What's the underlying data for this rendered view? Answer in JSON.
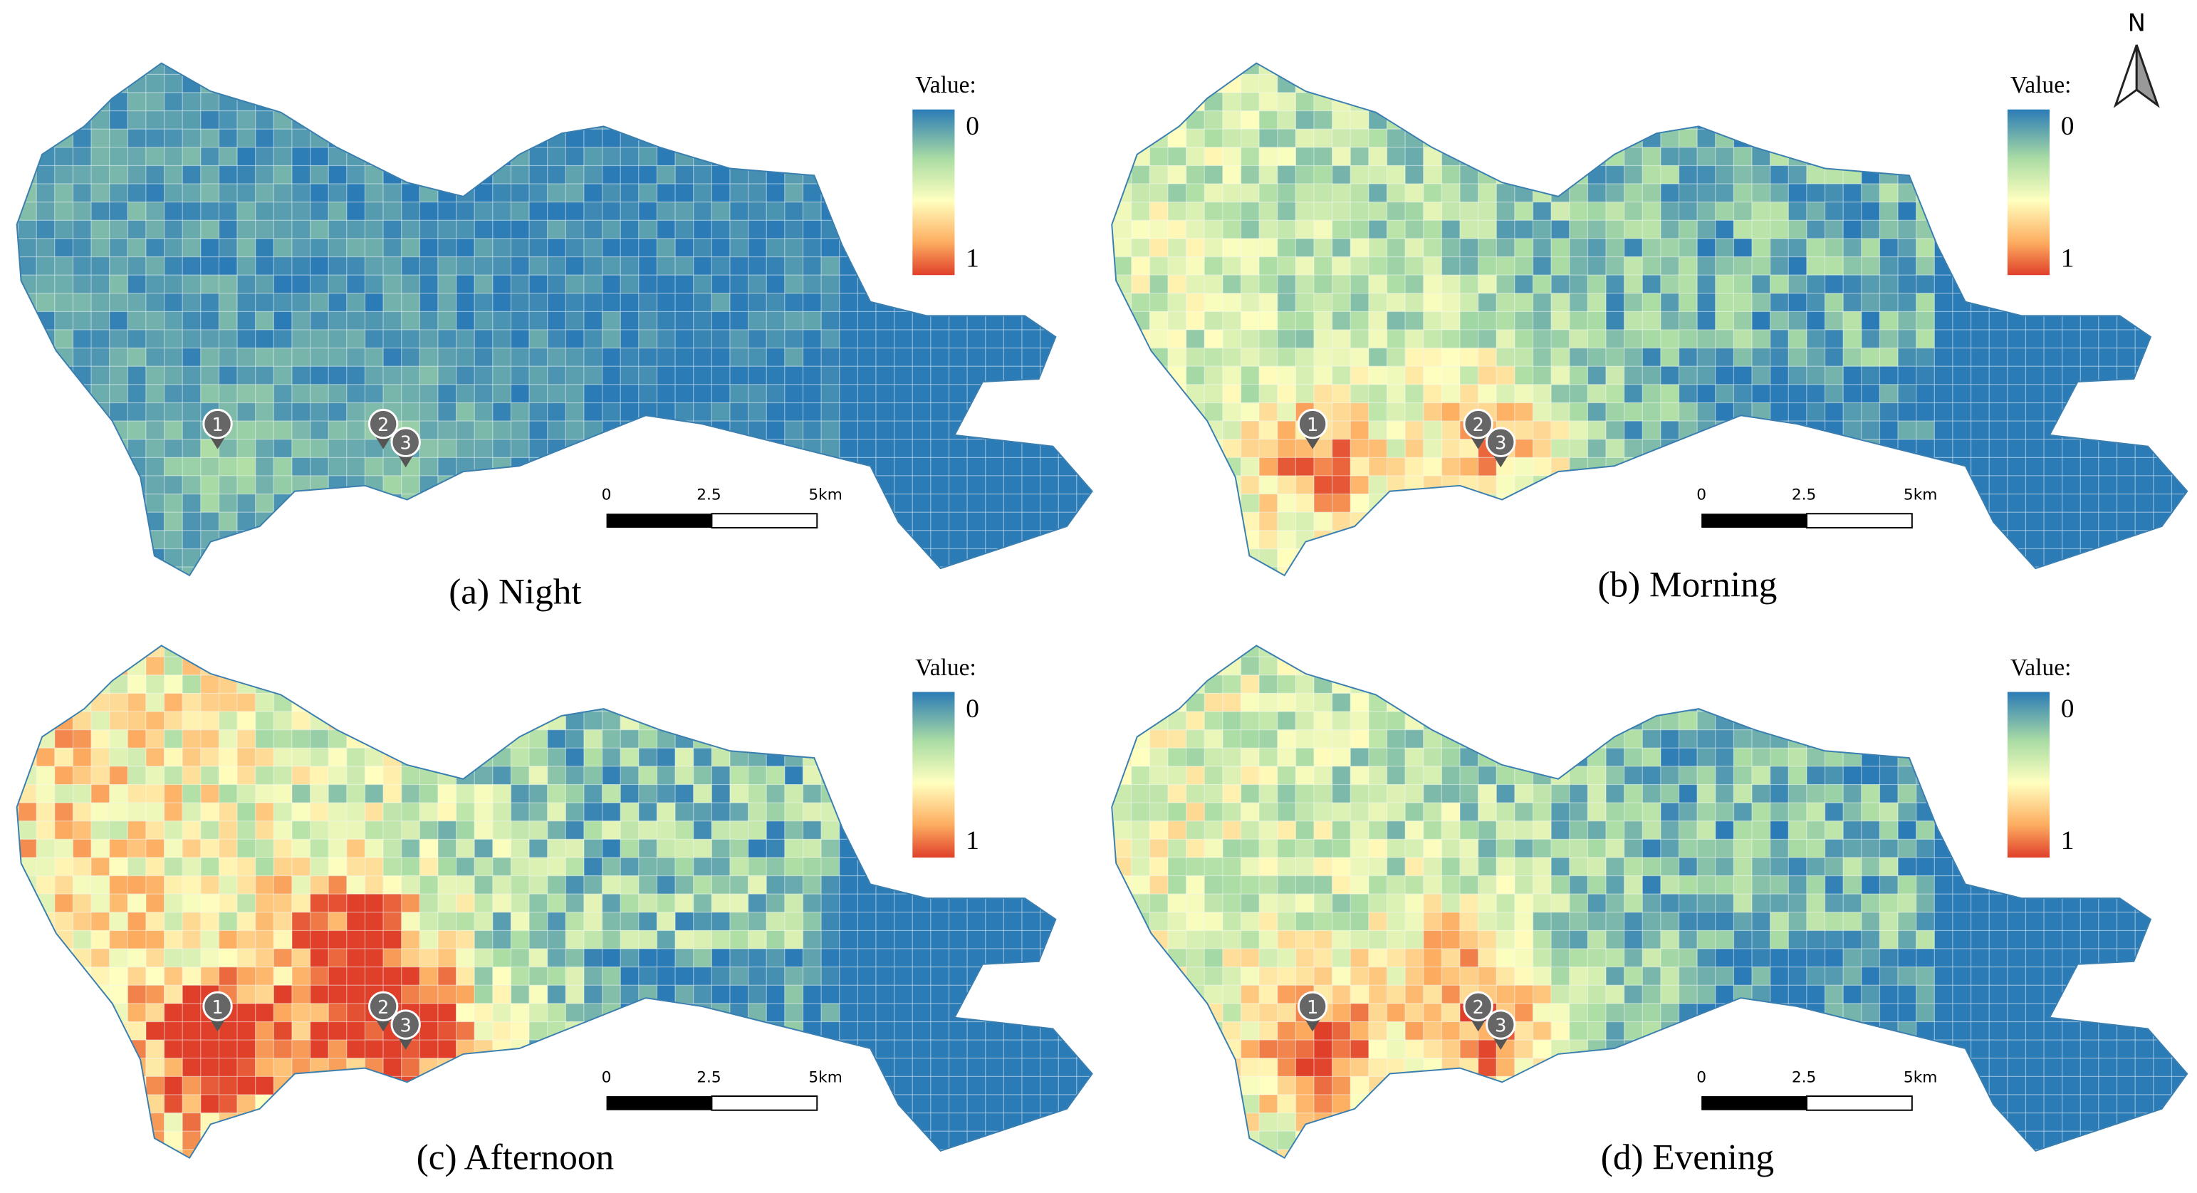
{
  "north": "N",
  "panels": [
    {
      "caption": "(a) Night",
      "legend": {
        "title": "Value:",
        "labels": [
          "0",
          "1"
        ]
      },
      "scale_bar": [
        "0",
        "2.5",
        "5km"
      ],
      "markers": [
        "1",
        "2",
        "3"
      ]
    },
    {
      "caption": "(b) Morning",
      "legend": {
        "title": "Value:",
        "labels": [
          "0",
          "1"
        ]
      },
      "scale_bar": [
        "0",
        "2.5",
        "5km"
      ],
      "markers": [
        "1",
        "2",
        "3"
      ]
    },
    {
      "caption": "(c) Afternoon",
      "legend": {
        "title": "Value:",
        "labels": [
          "0",
          "1"
        ]
      },
      "scale_bar": [
        "0",
        "2.5",
        "5km"
      ],
      "markers": [
        "1",
        "2",
        "3"
      ]
    },
    {
      "caption": "(d) Evening",
      "legend": {
        "title": "Value:",
        "labels": [
          "0",
          "1"
        ]
      },
      "scale_bar": [
        "0",
        "2.5",
        "5km"
      ],
      "markers": [
        "1",
        "2",
        "3"
      ]
    }
  ]
}
